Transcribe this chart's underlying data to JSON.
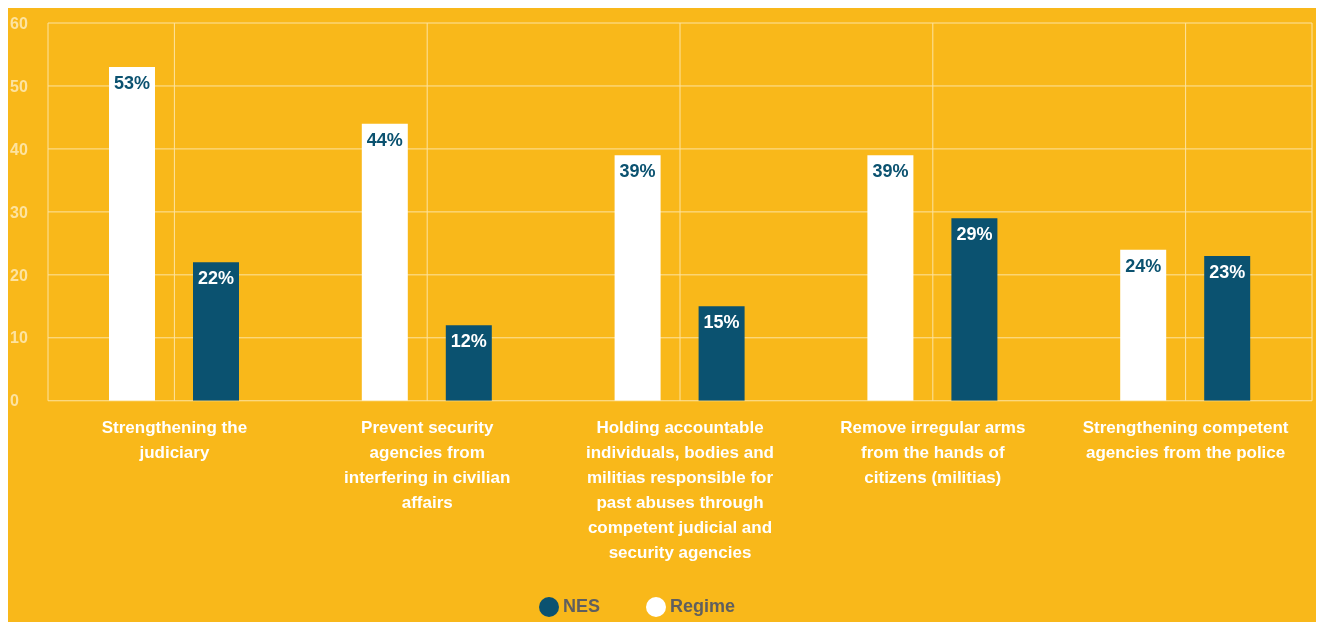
{
  "chart_data": {
    "type": "bar",
    "categories": [
      "Strengthening the judiciary",
      "Prevent security agencies from interfering in civilian affairs",
      "Holding accountable individuals, bodies and militias responsible for past abuses through competent judicial and security agencies",
      "Remove irregular arms from the hands of citizens (militias)",
      "Strengthening competent agencies from the police"
    ],
    "series": [
      {
        "name": "Regime",
        "color": "#ffffff",
        "values": [
          53,
          44,
          39,
          39,
          24
        ],
        "value_labels": [
          "53%",
          "44%",
          "39%",
          "39%",
          "24%"
        ]
      },
      {
        "name": "NES",
        "color": "#0b5270",
        "values": [
          22,
          12,
          15,
          29,
          23
        ],
        "value_labels": [
          "22%",
          "12%",
          "15%",
          "29%",
          "23%"
        ]
      }
    ],
    "ylim": [
      0,
      60
    ],
    "yticks": [
      0,
      10,
      20,
      30,
      40,
      50,
      60
    ],
    "grid": true,
    "legend": "bottom"
  }
}
